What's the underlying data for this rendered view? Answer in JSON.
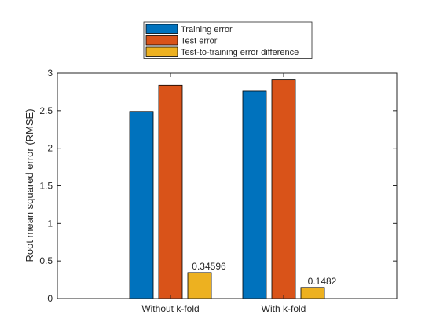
{
  "chart_data": {
    "type": "bar",
    "categories": [
      "Without k-fold",
      "With k-fold"
    ],
    "series": [
      {
        "name": "Training error",
        "values": [
          2.49,
          2.76
        ],
        "color": "#0072BD"
      },
      {
        "name": "Test error",
        "values": [
          2.84,
          2.91
        ],
        "color": "#D95319"
      },
      {
        "name": "Test-to-training error difference",
        "values": [
          0.34596,
          0.1482
        ],
        "color": "#EDB120"
      }
    ],
    "data_labels": [
      "0.34596",
      "0.1482"
    ],
    "ylabel": "Root mean squared error (RMSE)",
    "ylim": [
      0,
      3
    ],
    "yticks": [
      0,
      0.5,
      1,
      1.5,
      2,
      2.5,
      3
    ],
    "ytick_labels": [
      "0",
      "0.5",
      "1",
      "1.5",
      "2",
      "2.5",
      "3"
    ],
    "grid": false,
    "legend_position": "top-center"
  }
}
